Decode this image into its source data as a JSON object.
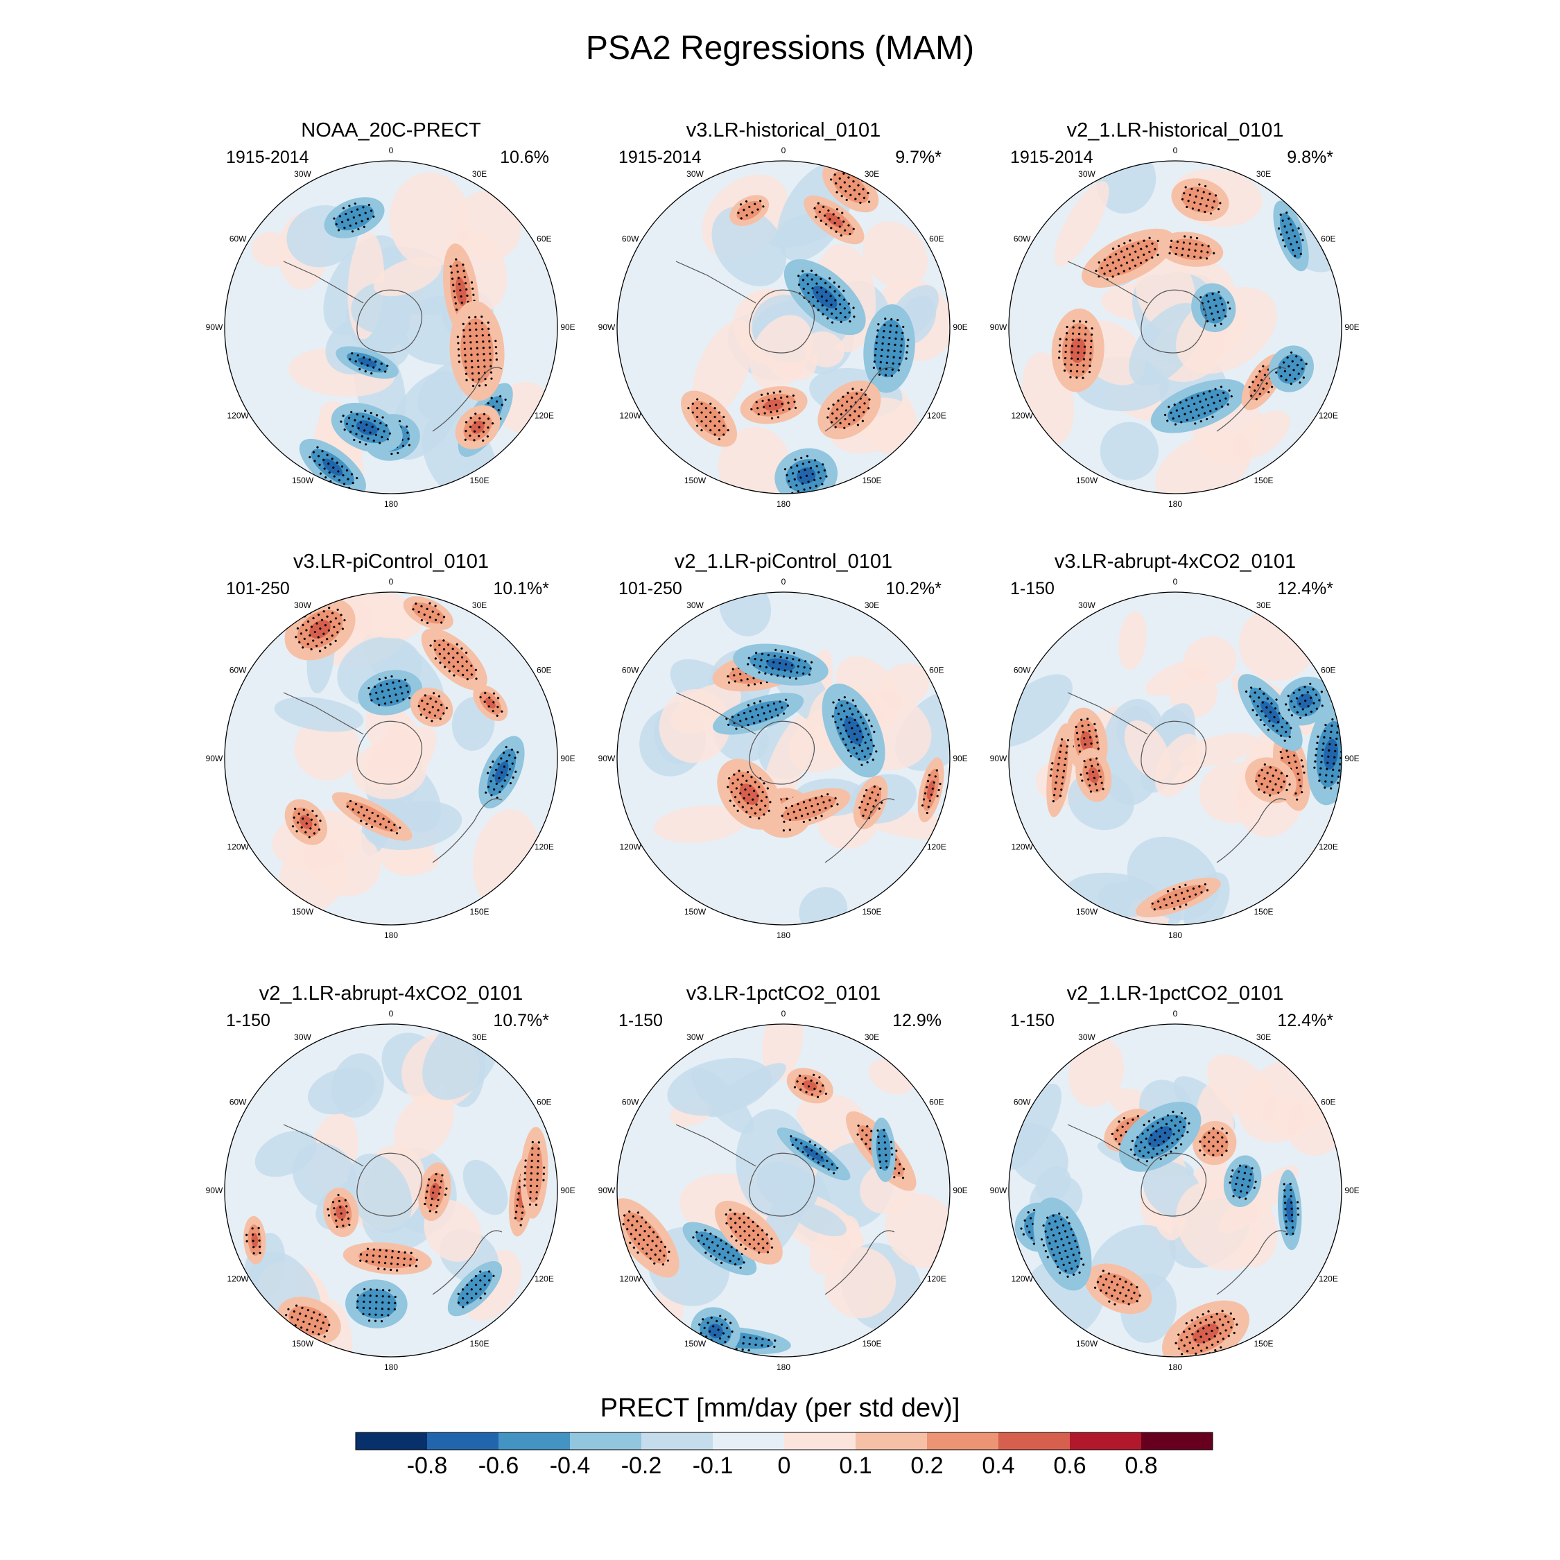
{
  "figure": {
    "title": "PSA2 Regressions (MAM)",
    "colorbar_label": "PRECT [mm/day (per std dev)]"
  },
  "chart_data": {
    "type": "heatmap",
    "projection": "south polar stereographic",
    "colorbar": {
      "colors": [
        "#08306b",
        "#2166ac",
        "#4393c3",
        "#92c5de",
        "#c4dcec",
        "#e6eff6",
        "#fbe4dc",
        "#f6c0a7",
        "#ec9474",
        "#d6604d",
        "#b2182b",
        "#67001f"
      ],
      "tick_labels": [
        "-0.8",
        "-0.6",
        "-0.4",
        "-0.2",
        "-0.1",
        "0",
        "0.1",
        "0.2",
        "0.4",
        "0.6",
        "0.8"
      ]
    },
    "longitude_labels": [
      "0",
      "30E",
      "60E",
      "90E",
      "120E",
      "150E",
      "180",
      "150W",
      "120W",
      "90W",
      "60W",
      "30W"
    ],
    "panels": [
      {
        "title": "NOAA_20C-PRECT",
        "period": "1915-2014",
        "variance": "10.6%"
      },
      {
        "title": "v3.LR-historical_0101",
        "period": "1915-2014",
        "variance": "9.7%*"
      },
      {
        "title": "v2_1.LR-historical_0101",
        "period": "1915-2014",
        "variance": "9.8%*"
      },
      {
        "title": "v3.LR-piControl_0101",
        "period": "101-250",
        "variance": "10.1%*"
      },
      {
        "title": "v2_1.LR-piControl_0101",
        "period": "101-250",
        "variance": "10.2%*"
      },
      {
        "title": "v3.LR-abrupt-4xCO2_0101",
        "period": "1-150",
        "variance": "12.4%*"
      },
      {
        "title": "v2_1.LR-abrupt-4xCO2_0101",
        "period": "1-150",
        "variance": "10.7%*"
      },
      {
        "title": "v3.LR-1pctCO2_0101",
        "period": "1-150",
        "variance": "12.9%"
      },
      {
        "title": "v2_1.LR-1pctCO2_0101",
        "period": "1-150",
        "variance": "12.4%*"
      }
    ]
  }
}
